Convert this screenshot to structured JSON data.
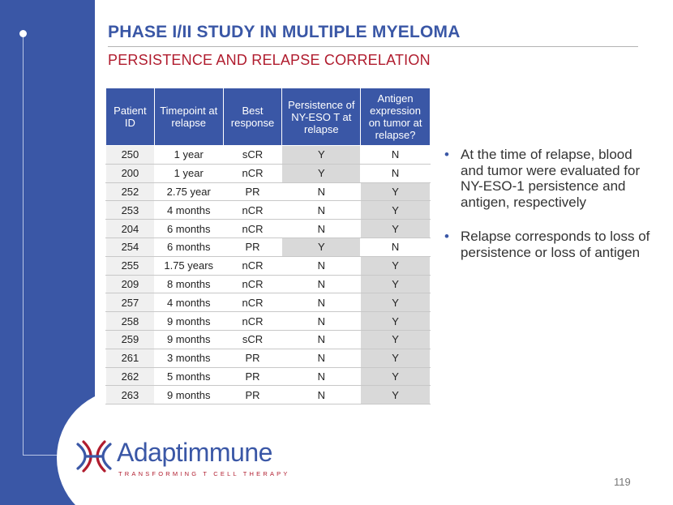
{
  "slide": {
    "title": "PHASE I/II STUDY IN MULTIPLE MYELOMA",
    "subtitle": "PERSISTENCE AND RELAPSE CORRELATION",
    "page_number": "119"
  },
  "colors": {
    "brand_blue": "#3a57a6",
    "brand_red": "#b01c2e",
    "shade_gray": "#d9d9d9"
  },
  "table": {
    "headers": [
      "Patient ID",
      "Timepoint at relapse",
      "Best response",
      "Persistence of NY-ESO T at relapse",
      "Antigen expression on tumor at relapse?"
    ],
    "rows": [
      [
        "250",
        "1 year",
        "sCR",
        "Y",
        "N"
      ],
      [
        "200",
        "1 year",
        "nCR",
        "Y",
        "N"
      ],
      [
        "252",
        "2.75 year",
        "PR",
        "N",
        "Y"
      ],
      [
        "253",
        "4 months",
        "nCR",
        "N",
        "Y"
      ],
      [
        "204",
        "6 months",
        "nCR",
        "N",
        "Y"
      ],
      [
        "254",
        "6 months",
        "PR",
        "Y",
        "N"
      ],
      [
        "255",
        "1.75 years",
        "nCR",
        "N",
        "Y"
      ],
      [
        "209",
        "8 months",
        "nCR",
        "N",
        "Y"
      ],
      [
        "257",
        "4 months",
        "nCR",
        "N",
        "Y"
      ],
      [
        "258",
        "9 months",
        "nCR",
        "N",
        "Y"
      ],
      [
        "259",
        "9 months",
        "sCR",
        "N",
        "Y"
      ],
      [
        "261",
        "3 months",
        "PR",
        "N",
        "Y"
      ],
      [
        "262",
        "5 months",
        "PR",
        "N",
        "Y"
      ],
      [
        "263",
        "9 months",
        "PR",
        "N",
        "Y"
      ]
    ]
  },
  "bullets": [
    "At the time of relapse, blood and tumor were evaluated for NY-ESO-1 persistence and antigen, respectively",
    "Relapse corresponds to loss of persistence or loss of antigen"
  ],
  "logo": {
    "wordmark": "Adaptimmune",
    "tagline": "TRANSFORMING T CELL THERAPY",
    "icon": "helix-logo-icon"
  }
}
